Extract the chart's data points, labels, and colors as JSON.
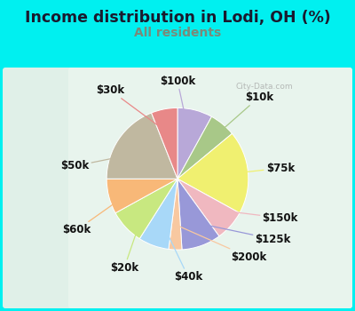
{
  "title": "Income distribution in Lodi, OH (%)",
  "subtitle": "All residents",
  "title_color": "#1a1a2e",
  "subtitle_color": "#7a8a7a",
  "bg_outer": "#00f0f0",
  "bg_inner_color": "#d8ede0",
  "watermark": "City-Data.com",
  "segments": [
    {
      "label": "$100k",
      "value": 8,
      "color": "#b8a8d8"
    },
    {
      "label": "$10k",
      "value": 6,
      "color": "#a8c888"
    },
    {
      "label": "$75k",
      "value": 19,
      "color": "#f0f070"
    },
    {
      "label": "$150k",
      "value": 7,
      "color": "#f0b8c0"
    },
    {
      "label": "$125k",
      "value": 9,
      "color": "#9898d8"
    },
    {
      "label": "$200k",
      "value": 3,
      "color": "#f8c8a0"
    },
    {
      "label": "$40k",
      "value": 7,
      "color": "#a8d8f8"
    },
    {
      "label": "$20k",
      "value": 8,
      "color": "#c8e880"
    },
    {
      "label": "$60k",
      "value": 8,
      "color": "#f8b878"
    },
    {
      "label": "$50k",
      "value": 19,
      "color": "#c0b8a0"
    },
    {
      "label": "$30k",
      "value": 6,
      "color": "#e88888"
    }
  ],
  "label_fontsize": 8.5,
  "title_fontsize": 12.5,
  "subtitle_fontsize": 10
}
